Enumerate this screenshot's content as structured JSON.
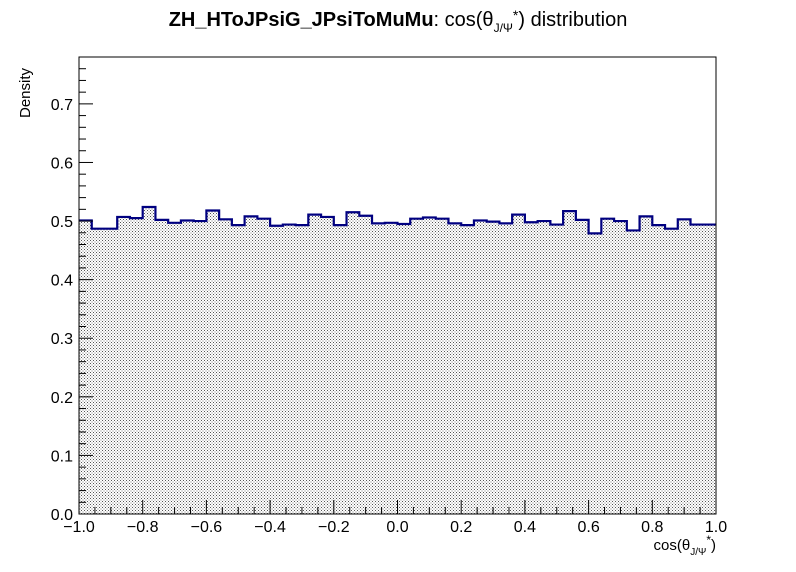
{
  "chart_data": {
    "type": "histogram",
    "title": {
      "bold": "ZH_HToJPsiG_JPsiToMuMu",
      "rest": ": cos(θ",
      "sub": "J/Ψ",
      "sup": "*",
      "end": ") distribution"
    },
    "xlabel": {
      "main": "cos(θ",
      "sub": "J/Ψ",
      "sup": "*",
      "end": ")"
    },
    "ylabel": "Density",
    "xlim": [
      -1.0,
      1.0
    ],
    "ylim": [
      0.0,
      0.78
    ],
    "xticks": [
      "−1.0",
      "−0.8",
      "−0.6",
      "−0.4",
      "−0.2",
      "0.0",
      "0.2",
      "0.4",
      "0.6",
      "0.8",
      "1.0"
    ],
    "yticks": [
      "0.0",
      "0.1",
      "0.2",
      "0.3",
      "0.4",
      "0.5",
      "0.6",
      "0.7"
    ],
    "bin_edges_start": -1.0,
    "bin_width": 0.04,
    "values": [
      0.501,
      0.487,
      0.487,
      0.507,
      0.505,
      0.524,
      0.502,
      0.497,
      0.501,
      0.5,
      0.518,
      0.503,
      0.493,
      0.508,
      0.504,
      0.492,
      0.494,
      0.493,
      0.511,
      0.507,
      0.493,
      0.515,
      0.509,
      0.496,
      0.497,
      0.495,
      0.504,
      0.506,
      0.504,
      0.496,
      0.493,
      0.501,
      0.499,
      0.496,
      0.511,
      0.498,
      0.5,
      0.494,
      0.517,
      0.502,
      0.479,
      0.504,
      0.5,
      0.484,
      0.508,
      0.493,
      0.487,
      0.503,
      0.494,
      0.494
    ],
    "line_color": "#000080",
    "fill_color": "#000000",
    "fill_style": "dotted hatch"
  }
}
